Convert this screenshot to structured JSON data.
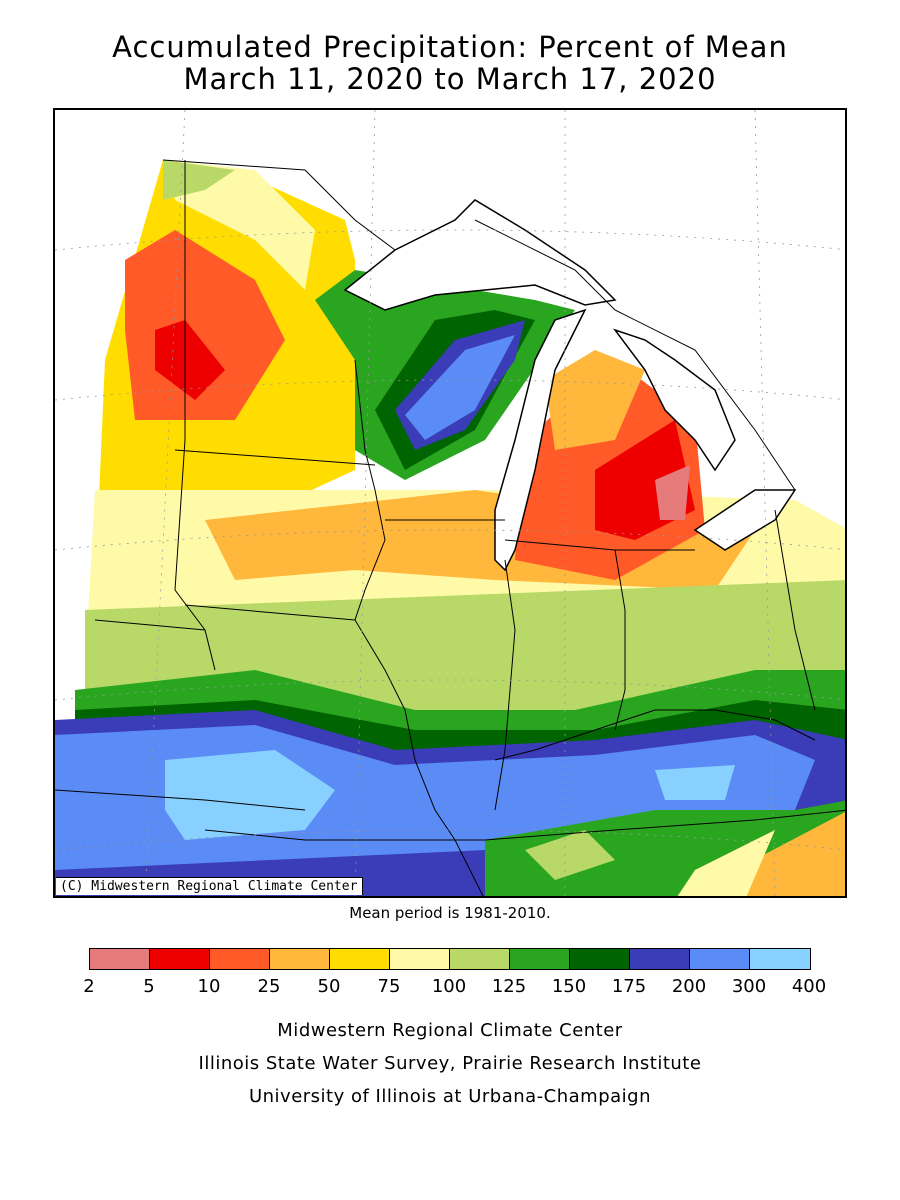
{
  "title": {
    "line1": "Accumulated Precipitation: Percent of Mean",
    "line2": "March 11, 2020 to March 17, 2020"
  },
  "map": {
    "credit": "(C) Midwestern Regional Climate Center",
    "mean_period": "Mean period is 1981-2010."
  },
  "legend": {
    "breaks": [
      "2",
      "5",
      "10",
      "25",
      "50",
      "75",
      "100",
      "125",
      "150",
      "175",
      "200",
      "300",
      "400"
    ],
    "colors": [
      "#e57b7b",
      "#ee0000",
      "#ff5a28",
      "#ffb73c",
      "#ffdd00",
      "#fffaa8",
      "#b8d968",
      "#2aa520",
      "#006400",
      "#3a3cb8",
      "#5b8cf5",
      "#88d0ff"
    ]
  },
  "footer": {
    "line1": "Midwestern Regional Climate Center",
    "line2": "Illinois State Water Survey, Prairie Research Institute",
    "line3": "University of Illinois at Urbana-Champaign"
  }
}
